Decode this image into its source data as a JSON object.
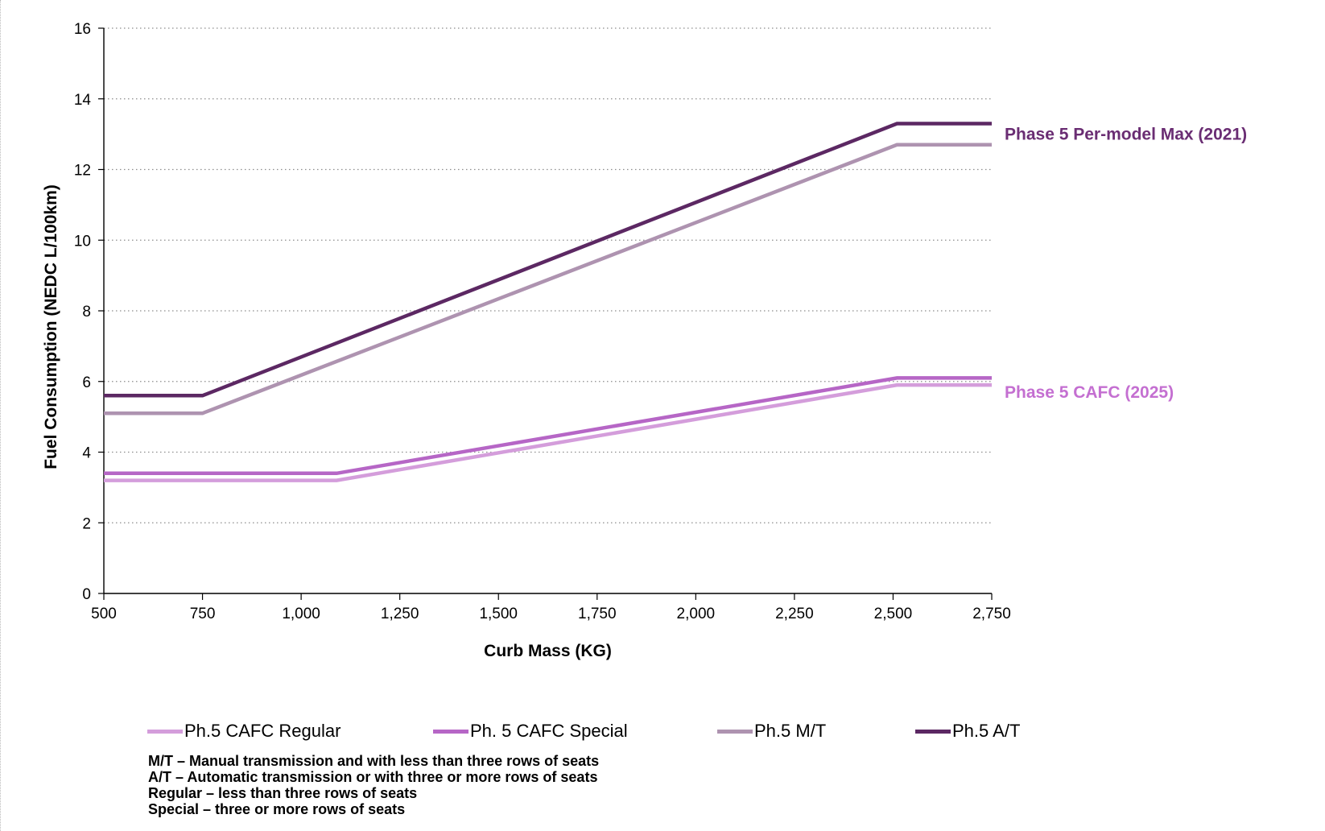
{
  "chart_data": {
    "type": "line",
    "xlabel": "Curb Mass (KG)",
    "ylabel": "Fuel Consumption (NEDC L/100km)",
    "xlim": [
      500,
      2750
    ],
    "ylim": [
      0,
      16
    ],
    "x_ticks": [
      "500",
      "750",
      "1,000",
      "1,250",
      "1,500",
      "1,750",
      "2,000",
      "2,250",
      "2,500",
      "2,750"
    ],
    "y_ticks": [
      "0",
      "2",
      "4",
      "6",
      "8",
      "10",
      "12",
      "14",
      "16"
    ],
    "grid": "horizontal dotted",
    "legend_position": "bottom",
    "series": [
      {
        "name": "Ph.5 CAFC Regular",
        "color": "#d49ddb",
        "x": [
          500,
          750,
          1090,
          2510,
          2750
        ],
        "y": [
          3.2,
          3.2,
          3.2,
          5.9,
          5.9
        ]
      },
      {
        "name": "Ph. 5 CAFC Special",
        "color": "#b666c6",
        "x": [
          500,
          750,
          1090,
          2510,
          2750
        ],
        "y": [
          3.4,
          3.4,
          3.4,
          6.1,
          6.1
        ]
      },
      {
        "name": "Ph.5 M/T",
        "color": "#ae93b0",
        "x": [
          500,
          750,
          2510,
          2750
        ],
        "y": [
          5.1,
          5.1,
          12.7,
          12.7
        ]
      },
      {
        "name": "Ph.5 A/T",
        "color": "#5c2863",
        "x": [
          500,
          750,
          2510,
          2750
        ],
        "y": [
          5.6,
          5.6,
          13.3,
          13.3
        ]
      }
    ],
    "annotations": [
      {
        "text": "Phase 5 Per-model Max (2021)",
        "color": "#6a2d73",
        "x": 2750,
        "y": 13.3
      },
      {
        "text": "Phase 5 CAFC (2025)",
        "color": "#c46fd1",
        "x": 2750,
        "y": 6.0
      }
    ]
  },
  "notes": [
    "M/T – Manual transmission and with less than three rows of seats",
    "A/T – Automatic transmission or with three or more rows of seats",
    "Regular – less than three rows of seats",
    "Special – three or more rows of seats"
  ]
}
